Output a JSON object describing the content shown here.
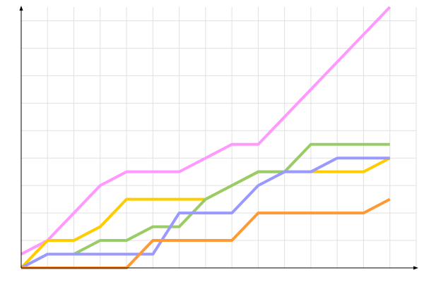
{
  "chart_data": {
    "type": "line",
    "x": [
      0,
      1,
      2,
      3,
      4,
      5,
      6,
      7,
      8,
      9,
      10,
      11,
      12,
      13,
      14
    ],
    "series": [
      {
        "color": "#ff99ff",
        "values": [
          0.5,
          1,
          2,
          3,
          3.5,
          3.5,
          3.5,
          4,
          4.5,
          4.5,
          5.5,
          6.5,
          7.5,
          8.5,
          9.5
        ]
      },
      {
        "color": "#ffcc00",
        "values": [
          0,
          1,
          1,
          1.5,
          2.5,
          2.5,
          2.5,
          2.5,
          3,
          3.5,
          3.5,
          3.5,
          3.5,
          3.5,
          4
        ]
      },
      {
        "color": "#99cc66",
        "values": [
          0,
          0.5,
          0.5,
          1,
          1,
          1.5,
          1.5,
          2.5,
          3,
          3.5,
          3.5,
          4.5,
          4.5,
          4.5,
          4.5
        ]
      },
      {
        "color": "#9999ff",
        "values": [
          0,
          0.5,
          0.5,
          0.5,
          0.5,
          0.5,
          2,
          2,
          2,
          3,
          3.5,
          3.5,
          4,
          4,
          4
        ]
      },
      {
        "color": "#ff9933",
        "values": [
          0,
          0,
          0,
          0,
          0,
          1,
          1,
          1,
          1,
          2,
          2,
          2,
          2,
          2,
          2.5
        ]
      }
    ],
    "xlim": [
      0,
      15
    ],
    "ylim": [
      0,
      9.5
    ],
    "xticks": [
      0,
      1,
      2,
      3,
      4,
      5,
      6,
      7,
      8,
      9,
      10,
      11,
      12,
      13,
      14,
      15
    ],
    "yticks": [
      0,
      1,
      2,
      3,
      4,
      5,
      6,
      7,
      8,
      9
    ],
    "grid": true
  }
}
